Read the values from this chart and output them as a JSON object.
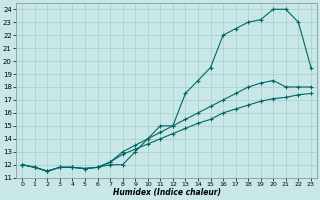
{
  "xlabel": "Humidex (Indice chaleur)",
  "background_color": "#c8e8e8",
  "grid_color": "#aacccc",
  "line_color": "#006666",
  "xlim": [
    -0.5,
    23.5
  ],
  "ylim": [
    11,
    24.5
  ],
  "yticks": [
    11,
    12,
    13,
    14,
    15,
    16,
    17,
    18,
    19,
    20,
    21,
    22,
    23,
    24
  ],
  "xticks": [
    0,
    1,
    2,
    3,
    4,
    5,
    6,
    7,
    8,
    9,
    10,
    11,
    12,
    13,
    14,
    15,
    16,
    17,
    18,
    19,
    20,
    21,
    22,
    23
  ],
  "series": [
    [
      12,
      11.8,
      11.5,
      11.8,
      11.8,
      11.7,
      11.8,
      12.0,
      12.0,
      13.0,
      14.0,
      15.0,
      15.0,
      17.5,
      18.5,
      19.5,
      22.0,
      22.5,
      23.0,
      23.2,
      24.0,
      24.0,
      23.0,
      19.5
    ],
    [
      12,
      11.8,
      11.5,
      11.8,
      11.8,
      11.7,
      11.8,
      12.2,
      13.0,
      13.5,
      14.0,
      14.5,
      15.0,
      15.5,
      16.0,
      16.5,
      17.0,
      17.5,
      18.0,
      18.3,
      18.5,
      18.0,
      18.0,
      18.0
    ],
    [
      12,
      11.8,
      11.5,
      11.8,
      11.8,
      11.7,
      11.8,
      12.2,
      12.8,
      13.2,
      13.6,
      14.0,
      14.4,
      14.8,
      15.2,
      15.5,
      16.0,
      16.3,
      16.6,
      16.9,
      17.1,
      17.2,
      17.4,
      17.5
    ]
  ]
}
